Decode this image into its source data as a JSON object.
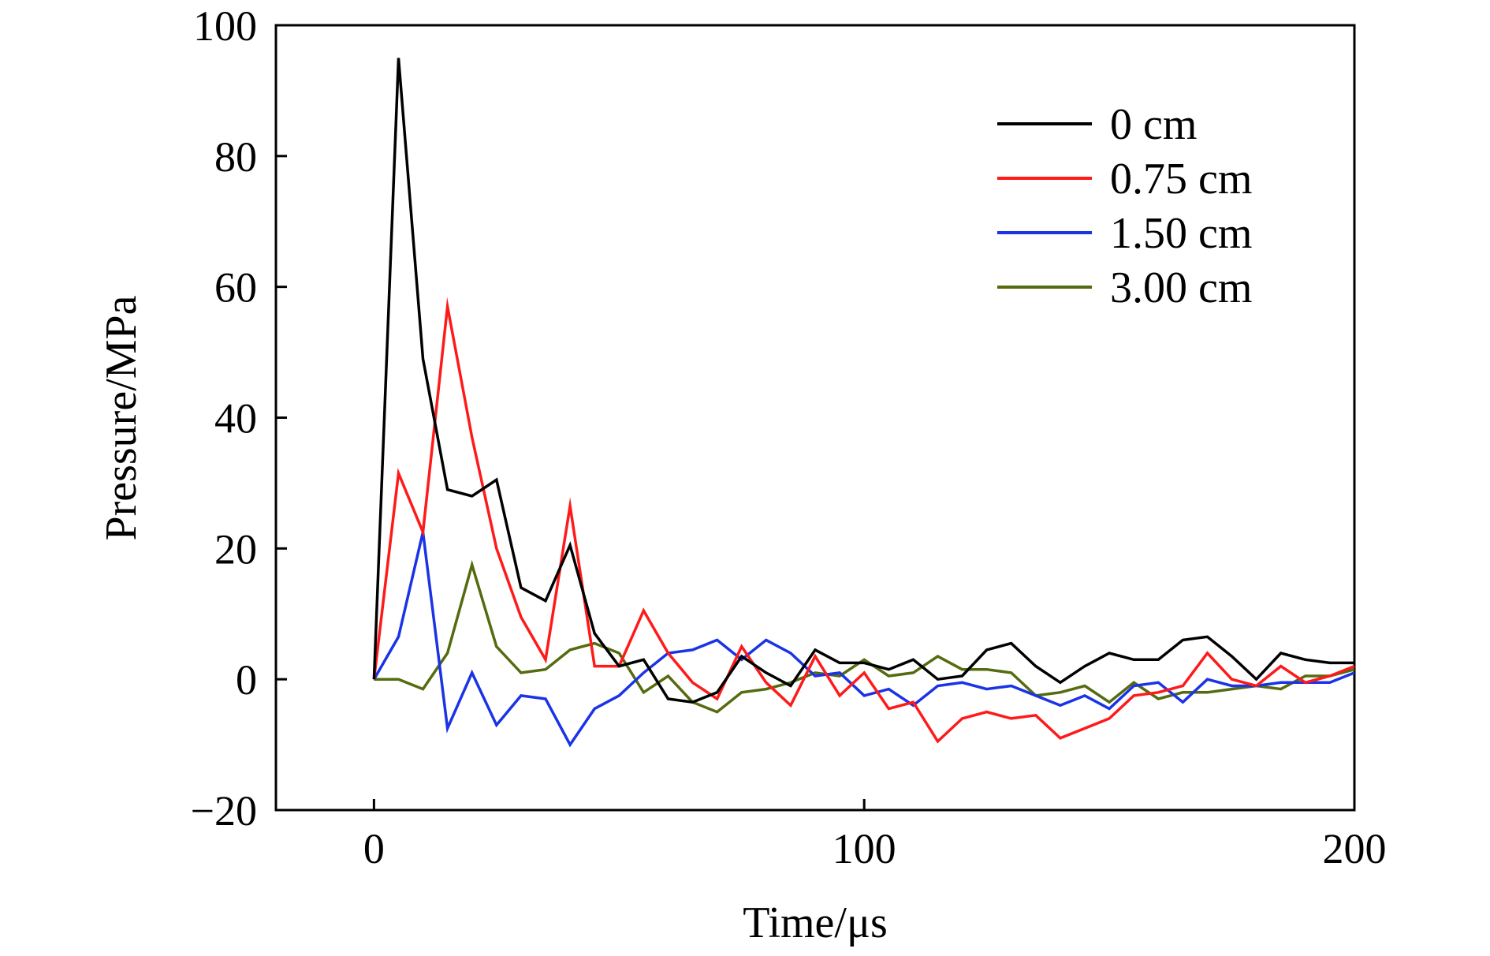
{
  "chart_data": {
    "type": "line",
    "title": "",
    "xlabel": "Time/μs",
    "ylabel": "Pressure/MPa",
    "xlim": [
      -20,
      200
    ],
    "ylim": [
      -20,
      100
    ],
    "xticks": [
      0,
      100,
      200
    ],
    "yticks": [
      -20,
      0,
      20,
      40,
      60,
      80,
      100
    ],
    "xtick_labels": [
      "0",
      "100",
      "200"
    ],
    "ytick_labels": [
      "−20",
      "0",
      "20",
      "40",
      "60",
      "80",
      "100"
    ],
    "grid": false,
    "legend_position": "top-right",
    "x": [
      0,
      5,
      10,
      15,
      20,
      25,
      30,
      35,
      40,
      45,
      50,
      55,
      60,
      65,
      70,
      75,
      80,
      85,
      90,
      95,
      100,
      105,
      110,
      115,
      120,
      125,
      130,
      135,
      140,
      145,
      150,
      155,
      160,
      165,
      170,
      175,
      180,
      185,
      190,
      195,
      200
    ],
    "series": [
      {
        "name": "0 cm",
        "color": "#000000",
        "values": [
          0,
          95,
          49,
          29,
          28,
          30.5,
          14,
          12,
          20.5,
          7,
          2,
          3,
          -3,
          -3.5,
          -2,
          3.5,
          1,
          -1,
          4.5,
          2.5,
          2.5,
          1.5,
          3,
          0,
          0.5,
          4.5,
          5.5,
          2,
          -0.5,
          2,
          4,
          3,
          3,
          6,
          6.5,
          3.5,
          0,
          4,
          3,
          2.5,
          2.5
        ]
      },
      {
        "name": "0.75 cm",
        "color": "#ff1a1a",
        "values": [
          0,
          31.5,
          22.5,
          57,
          37,
          20,
          9.5,
          3,
          26.5,
          2,
          2,
          10.5,
          4,
          -0.5,
          -3,
          5,
          -0.5,
          -4,
          3.5,
          -2.5,
          1,
          -4.5,
          -3.5,
          -9.5,
          -6,
          -5,
          -6,
          -5.5,
          -9,
          -7.5,
          -6,
          -2.5,
          -2,
          -1,
          4,
          0,
          -1,
          2,
          -0.5,
          0.5,
          2
        ]
      },
      {
        "name": "1.50 cm",
        "color": "#1a33e6",
        "values": [
          0,
          6.5,
          22.5,
          -7.5,
          1,
          -7,
          -2.5,
          -3,
          -10,
          -4.5,
          -2.5,
          1,
          4,
          4.5,
          6,
          3,
          6,
          4,
          0.5,
          1,
          -2.5,
          -1.5,
          -4,
          -1,
          -0.5,
          -1.5,
          -1,
          -2.5,
          -4,
          -2.5,
          -4.5,
          -1,
          -0.5,
          -3.5,
          0,
          -1,
          -1,
          -0.5,
          -0.5,
          -0.5,
          1
        ]
      },
      {
        "name": "3.00 cm",
        "color": "#556b0f",
        "values": [
          0,
          0,
          -1.5,
          4,
          17.5,
          5,
          1,
          1.5,
          4.5,
          5.5,
          4,
          -2,
          0.5,
          -3.5,
          -5,
          -2,
          -1.5,
          -0.5,
          1,
          0.5,
          3,
          0.5,
          1,
          3.5,
          1.5,
          1.5,
          1,
          -2.5,
          -2,
          -1,
          -3.5,
          -0.5,
          -3,
          -2,
          -2,
          -1.5,
          -1,
          -1.5,
          0.5,
          0.5,
          1.5
        ]
      }
    ]
  }
}
